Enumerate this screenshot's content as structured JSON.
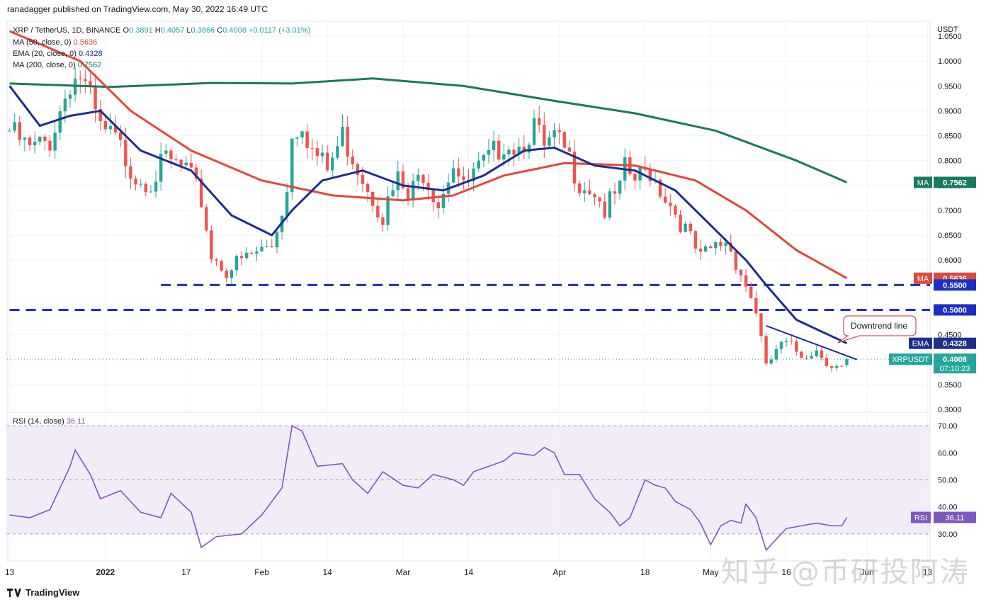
{
  "header": {
    "published": "ranadagger published on TradingView.com, May 30, 2022 16:49 UTC"
  },
  "footer": {
    "brand": "TradingView"
  },
  "watermark": "知乎 @币研投阿涛",
  "colors": {
    "up": "#26a69a",
    "down": "#ef5350",
    "ma50": "#e0483d",
    "ema20": "#1c2f8c",
    "ma200": "#1a7a5e",
    "dashed": "#1b2fc4",
    "rsi": "#7e57c2",
    "rsiBand": "#ede7f6",
    "grid": "#f0f3fa",
    "text": "#131722"
  },
  "legend": {
    "symbol": "XRP / TetherUS, 1D, BINANCE",
    "ohlc": [
      {
        "label": "O",
        "value": "0.3891"
      },
      {
        "label": "H",
        "value": "0.4057"
      },
      {
        "label": "L",
        "value": "0.3866"
      },
      {
        "label": "C",
        "value": "0.4008"
      }
    ],
    "change": "+0.0117 (+3.01%)",
    "indicators": [
      {
        "name": "MA (50, close, 0)",
        "value": "0.5636",
        "color": "#e0483d"
      },
      {
        "name": "EMA (20, close, 0)",
        "value": "0.4328",
        "color": "#1c2f8c"
      },
      {
        "name": "MA (200, close, 0)",
        "value": "0.7562",
        "color": "#1a7a5e"
      }
    ],
    "rsi": {
      "name": "RSI (14, close)",
      "value": "36.11"
    }
  },
  "chart_data": {
    "type": "candlestick",
    "title": "XRP / TetherUS, 1D, BINANCE",
    "currency": "USDT",
    "ylim": [
      0.3,
      1.08
    ],
    "price_ticks": [
      "1.0500",
      "1.0000",
      "0.9500",
      "0.9000",
      "0.8500",
      "0.8000",
      "0.7500",
      "0.7000",
      "0.6500",
      "0.6000",
      "0.4500",
      "0.3500",
      "0.3000"
    ],
    "x_labels": [
      {
        "text": "13",
        "day": 0
      },
      {
        "text": "2022",
        "day": 19
      },
      {
        "text": "17",
        "day": 35
      },
      {
        "text": "Feb",
        "day": 50
      },
      {
        "text": "14",
        "day": 63
      },
      {
        "text": "Mar",
        "day": 78
      },
      {
        "text": "14",
        "day": 91
      },
      {
        "text": "Apr",
        "day": 109
      },
      {
        "text": "18",
        "day": 126
      },
      {
        "text": "May",
        "day": 139
      },
      {
        "text": "16",
        "day": 154
      },
      {
        "text": "Jun",
        "day": 170
      },
      {
        "text": "13",
        "day": 182
      }
    ],
    "keypoints": [
      {
        "day": 0,
        "close": 0.86
      },
      {
        "day": 4,
        "close": 0.82
      },
      {
        "day": 8,
        "close": 0.84
      },
      {
        "day": 12,
        "close": 0.96
      },
      {
        "day": 14,
        "close": 0.97
      },
      {
        "day": 16,
        "close": 0.92
      },
      {
        "day": 18,
        "close": 0.86
      },
      {
        "day": 21,
        "close": 0.84
      },
      {
        "day": 25,
        "close": 0.77
      },
      {
        "day": 28,
        "close": 0.76
      },
      {
        "day": 31,
        "close": 0.8
      },
      {
        "day": 35,
        "close": 0.78
      },
      {
        "day": 38,
        "close": 0.72
      },
      {
        "day": 40,
        "close": 0.61
      },
      {
        "day": 43,
        "close": 0.58
      },
      {
        "day": 48,
        "close": 0.61
      },
      {
        "day": 52,
        "close": 0.63
      },
      {
        "day": 55,
        "close": 0.74
      },
      {
        "day": 56,
        "close": 0.86
      },
      {
        "day": 58,
        "close": 0.88
      },
      {
        "day": 60,
        "close": 0.82
      },
      {
        "day": 63,
        "close": 0.78
      },
      {
        "day": 66,
        "close": 0.85
      },
      {
        "day": 69,
        "close": 0.79
      },
      {
        "day": 72,
        "close": 0.73
      },
      {
        "day": 74,
        "close": 0.69
      },
      {
        "day": 77,
        "close": 0.76
      },
      {
        "day": 79,
        "close": 0.72
      },
      {
        "day": 82,
        "close": 0.78
      },
      {
        "day": 85,
        "close": 0.72
      },
      {
        "day": 88,
        "close": 0.8
      },
      {
        "day": 90,
        "close": 0.74
      },
      {
        "day": 92,
        "close": 0.77
      },
      {
        "day": 95,
        "close": 0.8
      },
      {
        "day": 98,
        "close": 0.84
      },
      {
        "day": 101,
        "close": 0.83
      },
      {
        "day": 104,
        "close": 0.87
      },
      {
        "day": 106,
        "close": 0.82
      },
      {
        "day": 108,
        "close": 0.84
      },
      {
        "day": 110,
        "close": 0.82
      },
      {
        "day": 113,
        "close": 0.76
      },
      {
        "day": 116,
        "close": 0.74
      },
      {
        "day": 118,
        "close": 0.7
      },
      {
        "day": 121,
        "close": 0.74
      },
      {
        "day": 122,
        "close": 0.78
      },
      {
        "day": 124,
        "close": 0.76
      },
      {
        "day": 127,
        "close": 0.78
      },
      {
        "day": 130,
        "close": 0.73
      },
      {
        "day": 133,
        "close": 0.68
      },
      {
        "day": 135,
        "close": 0.64
      },
      {
        "day": 137,
        "close": 0.6
      },
      {
        "day": 139,
        "close": 0.62
      },
      {
        "day": 142,
        "close": 0.64
      },
      {
        "day": 144,
        "close": 0.6
      },
      {
        "day": 146,
        "close": 0.55
      },
      {
        "day": 148,
        "close": 0.5
      },
      {
        "day": 150,
        "close": 0.38
      },
      {
        "day": 152,
        "close": 0.42
      },
      {
        "day": 154,
        "close": 0.43
      },
      {
        "day": 157,
        "close": 0.41
      },
      {
        "day": 160,
        "close": 0.42
      },
      {
        "day": 163,
        "close": 0.39
      },
      {
        "day": 165,
        "close": 0.38
      },
      {
        "day": 166,
        "close": 0.4008
      }
    ],
    "series": [
      {
        "name": "MA 200",
        "points": [
          [
            0,
            0.955
          ],
          [
            20,
            0.948
          ],
          [
            40,
            0.956
          ],
          [
            56,
            0.955
          ],
          [
            72,
            0.965
          ],
          [
            90,
            0.95
          ],
          [
            108,
            0.92
          ],
          [
            124,
            0.895
          ],
          [
            140,
            0.86
          ],
          [
            156,
            0.8
          ],
          [
            166,
            0.7562
          ]
        ]
      },
      {
        "name": "MA 50",
        "points": [
          [
            0,
            1.06
          ],
          [
            14,
            1.0
          ],
          [
            24,
            0.9
          ],
          [
            36,
            0.82
          ],
          [
            50,
            0.76
          ],
          [
            64,
            0.73
          ],
          [
            78,
            0.72
          ],
          [
            88,
            0.73
          ],
          [
            98,
            0.77
          ],
          [
            110,
            0.795
          ],
          [
            124,
            0.79
          ],
          [
            136,
            0.76
          ],
          [
            146,
            0.7
          ],
          [
            156,
            0.62
          ],
          [
            166,
            0.5636
          ]
        ]
      },
      {
        "name": "EMA 20",
        "points": [
          [
            0,
            0.95
          ],
          [
            6,
            0.87
          ],
          [
            12,
            0.89
          ],
          [
            18,
            0.9
          ],
          [
            26,
            0.82
          ],
          [
            36,
            0.78
          ],
          [
            44,
            0.69
          ],
          [
            52,
            0.65
          ],
          [
            56,
            0.7
          ],
          [
            62,
            0.76
          ],
          [
            70,
            0.78
          ],
          [
            78,
            0.75
          ],
          [
            86,
            0.74
          ],
          [
            94,
            0.77
          ],
          [
            102,
            0.82
          ],
          [
            108,
            0.826
          ],
          [
            116,
            0.79
          ],
          [
            124,
            0.78
          ],
          [
            132,
            0.74
          ],
          [
            140,
            0.66
          ],
          [
            146,
            0.6
          ],
          [
            150,
            0.55
          ],
          [
            156,
            0.48
          ],
          [
            166,
            0.4328
          ]
        ]
      }
    ],
    "levels": [
      {
        "label": "0.5500",
        "value": 0.55,
        "from_day": 30
      },
      {
        "label": "0.5000",
        "value": 0.5,
        "from_day": 0
      }
    ],
    "downtrend": {
      "label": "Downtrend line",
      "from": [
        150,
        0.468
      ],
      "to": [
        168,
        0.4
      ]
    },
    "price_tags": [
      {
        "name": "MA",
        "value": "0.7562",
        "y": 0.7562,
        "color": "#1a7a5e"
      },
      {
        "name": "MA",
        "value": "0.5636",
        "y": 0.5636,
        "color": "#e0483d"
      },
      {
        "name": "",
        "value": "0.5500",
        "y": 0.55,
        "color": "#1b2fc4"
      },
      {
        "name": "",
        "value": "0.5000",
        "y": 0.5,
        "color": "#1b2fc4"
      },
      {
        "name": "EMA",
        "value": "0.4328",
        "y": 0.4328,
        "color": "#1c2f8c"
      },
      {
        "name": "XRPUSDT",
        "value": "0.4008",
        "y": 0.4008,
        "color": "#26a69a",
        "extra": "07:10:23"
      }
    ],
    "rsi": {
      "ylim": [
        20,
        75
      ],
      "ticks": [
        "70.00",
        "60.00",
        "50.00",
        "40.00",
        "30.00"
      ],
      "band": [
        30,
        70
      ],
      "value": "36.11",
      "series": [
        [
          0,
          37
        ],
        [
          4,
          36
        ],
        [
          8,
          39
        ],
        [
          12,
          55
        ],
        [
          13,
          61
        ],
        [
          16,
          52
        ],
        [
          18,
          43
        ],
        [
          22,
          46
        ],
        [
          26,
          38
        ],
        [
          30,
          36
        ],
        [
          32,
          45
        ],
        [
          36,
          38
        ],
        [
          38,
          25
        ],
        [
          41,
          29
        ],
        [
          46,
          30
        ],
        [
          50,
          37
        ],
        [
          54,
          47
        ],
        [
          56,
          70
        ],
        [
          58,
          68
        ],
        [
          61,
          55
        ],
        [
          66,
          56
        ],
        [
          68,
          50
        ],
        [
          71,
          45
        ],
        [
          74,
          53
        ],
        [
          78,
          48
        ],
        [
          81,
          47
        ],
        [
          84,
          52
        ],
        [
          88,
          50
        ],
        [
          90,
          48
        ],
        [
          92,
          53
        ],
        [
          95,
          55
        ],
        [
          98,
          57
        ],
        [
          100,
          60
        ],
        [
          104,
          59
        ],
        [
          106,
          62
        ],
        [
          108,
          60
        ],
        [
          110,
          52
        ],
        [
          113,
          52
        ],
        [
          116,
          43
        ],
        [
          119,
          38
        ],
        [
          121,
          33
        ],
        [
          123,
          36
        ],
        [
          126,
          50
        ],
        [
          128,
          48
        ],
        [
          130,
          47
        ],
        [
          132,
          42
        ],
        [
          135,
          39
        ],
        [
          137,
          34
        ],
        [
          139,
          26
        ],
        [
          141,
          33
        ],
        [
          143,
          35
        ],
        [
          145,
          34
        ],
        [
          146,
          41
        ],
        [
          148,
          36
        ],
        [
          150,
          24
        ],
        [
          152,
          28
        ],
        [
          154,
          32
        ],
        [
          157,
          33
        ],
        [
          160,
          34
        ],
        [
          163,
          33
        ],
        [
          165,
          33
        ],
        [
          166,
          36.11
        ]
      ]
    }
  }
}
